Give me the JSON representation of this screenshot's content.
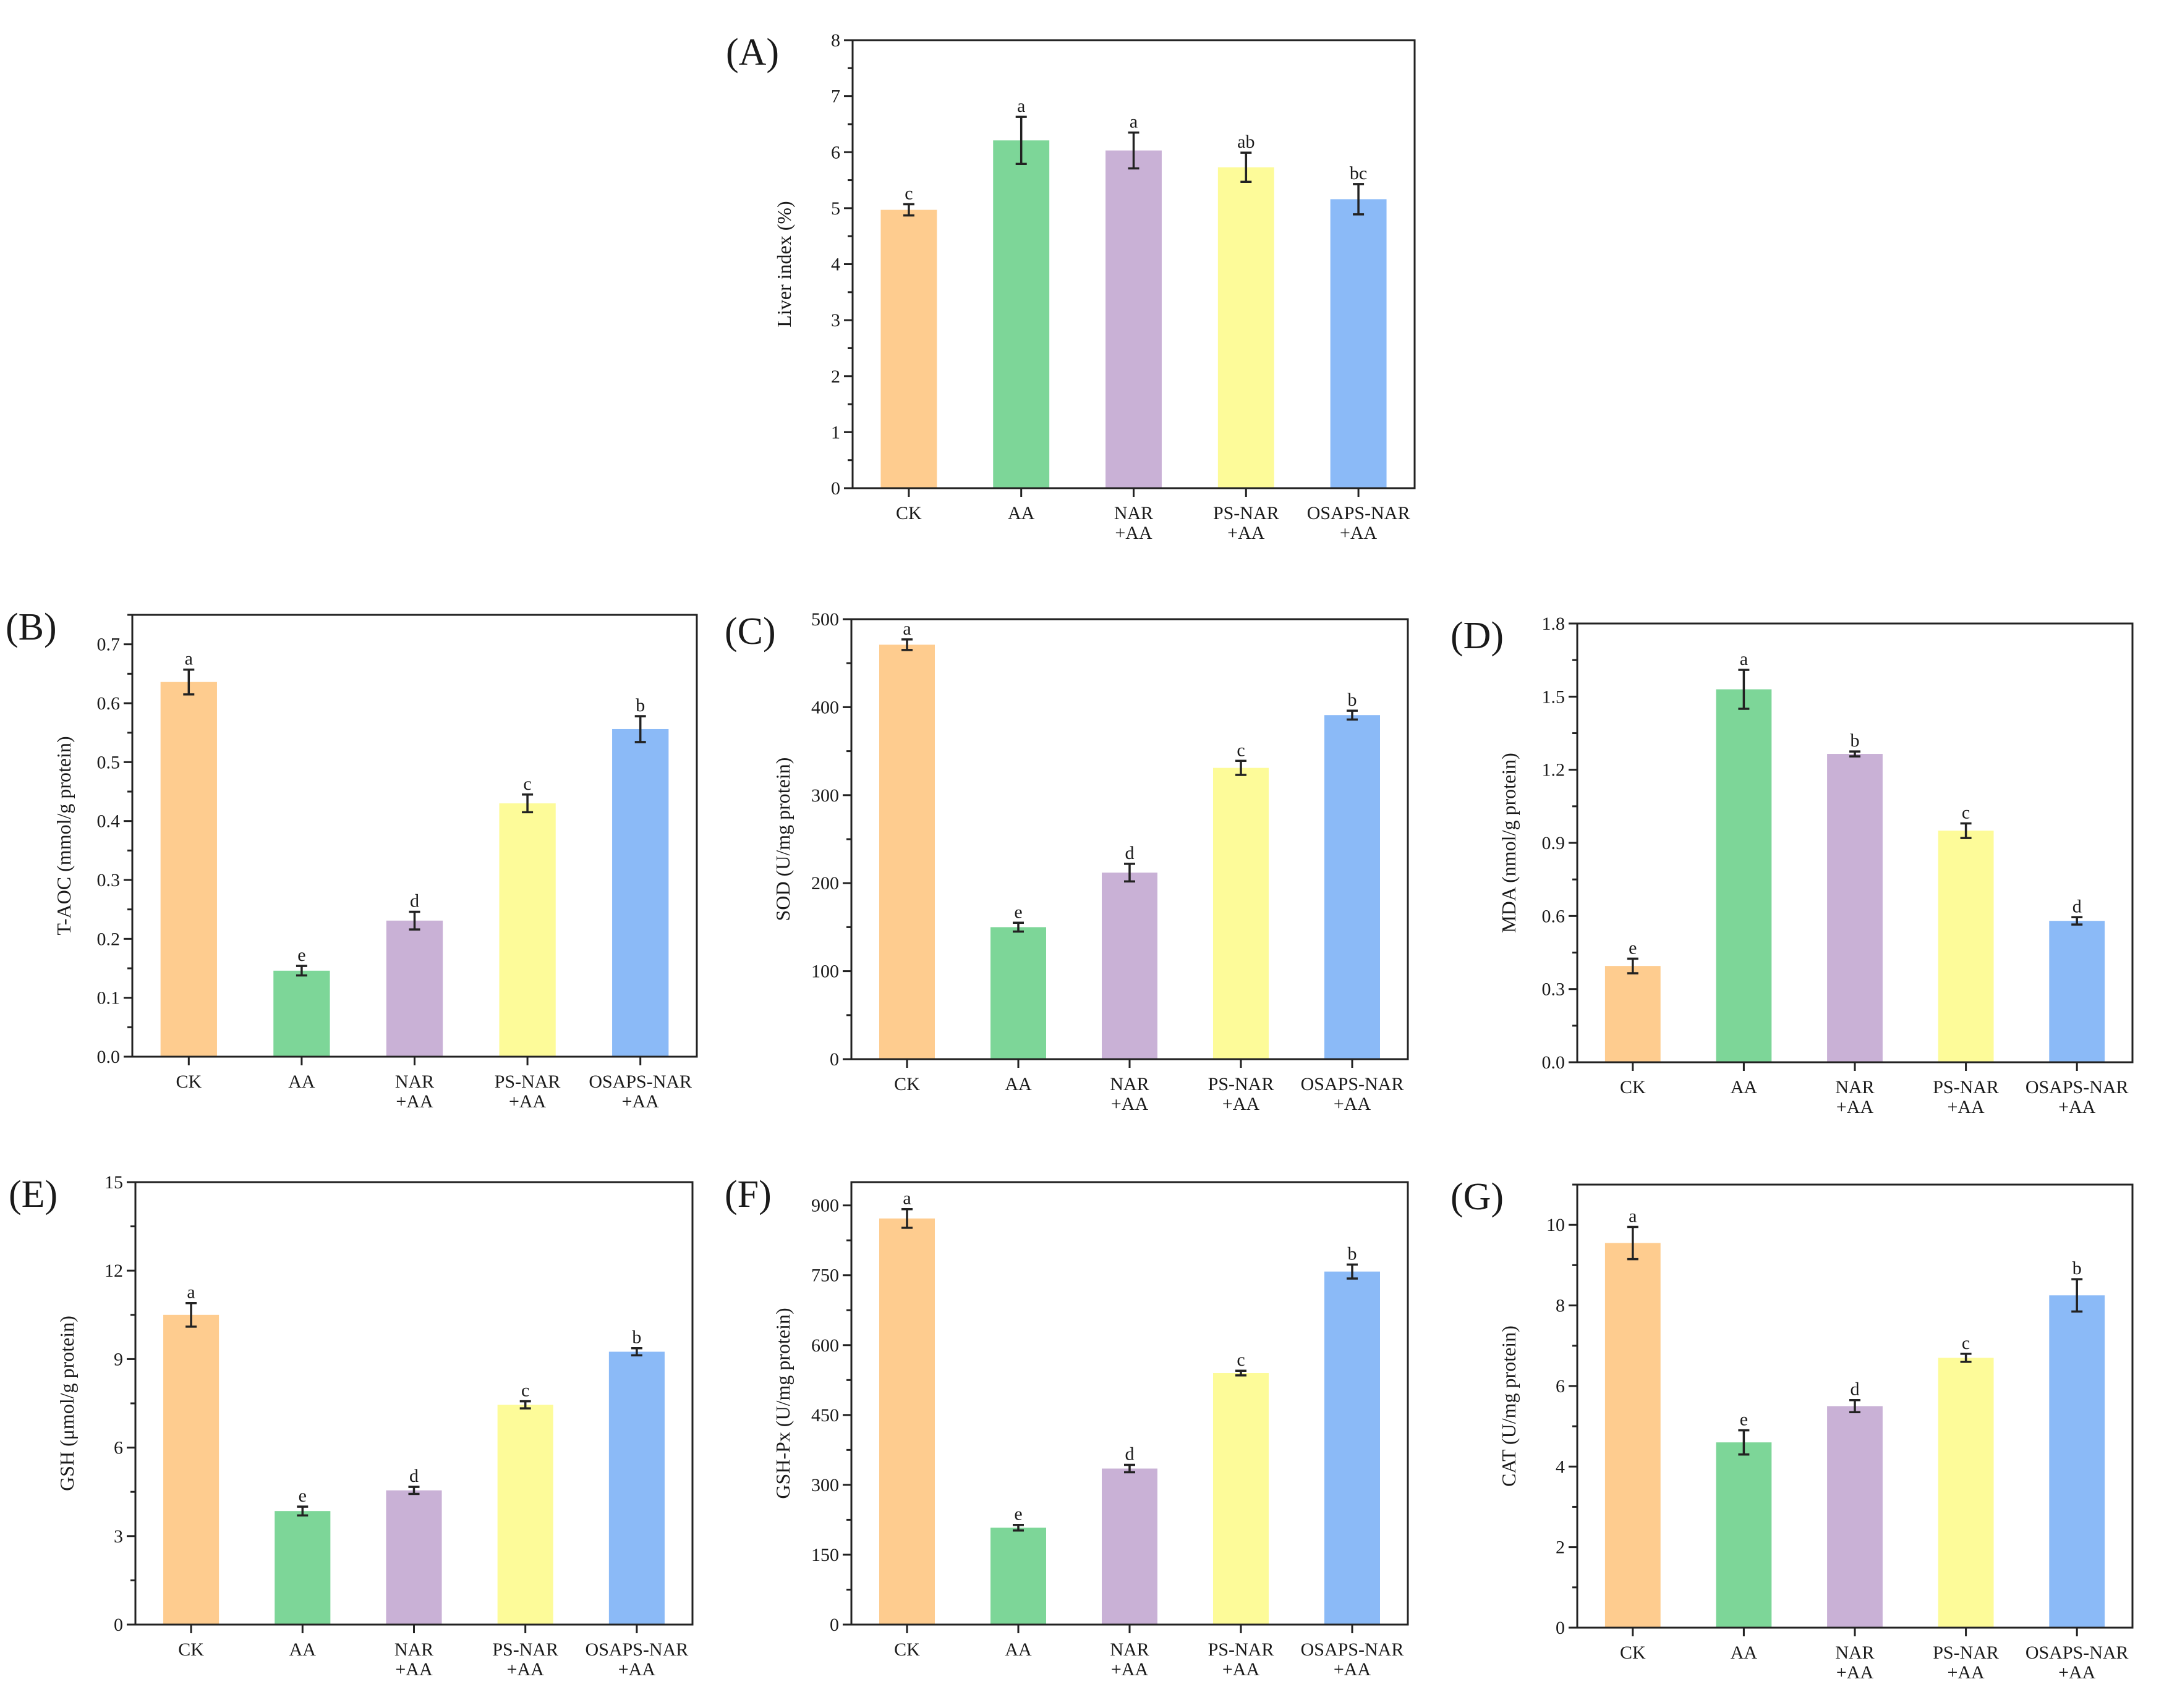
{
  "colors": [
    "#fecc8f",
    "#7dd698",
    "#c9b1d6",
    "#fdfb99",
    "#8bbaf7"
  ],
  "chart_data": [
    {
      "panel": "(A)",
      "type": "bar",
      "categories": [
        "CK",
        "AA",
        "NAR +AA",
        "PS-NAR +AA",
        "OSAPS-NAR +AA"
      ],
      "values": [
        4.97,
        6.21,
        6.03,
        5.73,
        5.16
      ],
      "errors": [
        0.1,
        0.42,
        0.32,
        0.26,
        0.27
      ],
      "letters": [
        "c",
        "a",
        "a",
        "ab",
        "bc"
      ],
      "ylabel": "Liver index (%)",
      "ylim": [
        0,
        8
      ],
      "yticks": [
        "0",
        "1",
        "2",
        "3",
        "4",
        "5",
        "6",
        "7",
        "8"
      ],
      "ytick_values": [
        0,
        1,
        2,
        3,
        4,
        5,
        6,
        7,
        8
      ]
    },
    {
      "panel": "(B)",
      "type": "bar",
      "categories": [
        "CK",
        "AA",
        "NAR +AA",
        "PS-NAR +AA",
        "OSAPS-NAR +AA"
      ],
      "values": [
        0.636,
        0.146,
        0.231,
        0.43,
        0.556
      ],
      "errors": [
        0.021,
        0.008,
        0.015,
        0.015,
        0.022
      ],
      "letters": [
        "a",
        "e",
        "d",
        "c",
        "b"
      ],
      "ylabel": "T-AOC (mmol/g protein)",
      "ylim": [
        0,
        0.75
      ],
      "yticks": [
        "0.0",
        "0.1",
        "0.2",
        "0.3",
        "0.4",
        "0.5",
        "0.6",
        "0.7"
      ],
      "ytick_values": [
        0,
        0.1,
        0.2,
        0.3,
        0.4,
        0.5,
        0.6,
        0.7
      ]
    },
    {
      "panel": "(C)",
      "type": "bar",
      "categories": [
        "CK",
        "AA",
        "NAR +AA",
        "PS-NAR +AA",
        "OSAPS-NAR +AA"
      ],
      "values": [
        471,
        150,
        212,
        331,
        391
      ],
      "errors": [
        6,
        5,
        10,
        8,
        5
      ],
      "letters": [
        "a",
        "e",
        "d",
        "c",
        "b"
      ],
      "ylabel": "SOD (U/mg protein)",
      "ylim": [
        0,
        500
      ],
      "yticks": [
        "0",
        "100",
        "200",
        "300",
        "400",
        "500"
      ],
      "ytick_values": [
        0,
        100,
        200,
        300,
        400,
        500
      ]
    },
    {
      "panel": "(D)",
      "type": "bar",
      "categories": [
        "CK",
        "AA",
        "NAR +AA",
        "PS-NAR +AA",
        "OSAPS-NAR +AA"
      ],
      "values": [
        0.395,
        1.53,
        1.265,
        0.95,
        0.58
      ],
      "errors": [
        0.03,
        0.08,
        0.01,
        0.03,
        0.015
      ],
      "letters": [
        "e",
        "a",
        "b",
        "c",
        "d"
      ],
      "ylabel": "MDA (nmol/g protein)",
      "ylim": [
        0,
        1.8
      ],
      "yticks": [
        "0.0",
        "0.3",
        "0.6",
        "0.9",
        "1.2",
        "1.5",
        "1.8"
      ],
      "ytick_values": [
        0,
        0.3,
        0.6,
        0.9,
        1.2,
        1.5,
        1.8
      ]
    },
    {
      "panel": "(E)",
      "type": "bar",
      "categories": [
        "CK",
        "AA",
        "NAR +AA",
        "PS-NAR +AA",
        "OSAPS-NAR +AA"
      ],
      "values": [
        10.5,
        3.85,
        4.55,
        7.45,
        9.25
      ],
      "errors": [
        0.4,
        0.15,
        0.12,
        0.12,
        0.12
      ],
      "letters": [
        "a",
        "e",
        "d",
        "c",
        "b"
      ],
      "ylabel": "GSH (μmol/g protein)",
      "ylim": [
        0,
        15
      ],
      "yticks": [
        "0",
        "3",
        "6",
        "9",
        "12",
        "15"
      ],
      "ytick_values": [
        0,
        3,
        6,
        9,
        12,
        15
      ]
    },
    {
      "panel": "(F)",
      "type": "bar",
      "categories": [
        "CK",
        "AA",
        "NAR +AA",
        "PS-NAR +AA",
        "OSAPS-NAR +AA"
      ],
      "values": [
        872,
        208,
        335,
        540,
        758
      ],
      "errors": [
        20,
        6,
        8,
        5,
        15
      ],
      "letters": [
        "a",
        "e",
        "d",
        "c",
        "b"
      ],
      "ylabel": "GSH-Px (U/mg protein)",
      "ylim": [
        0,
        950
      ],
      "yticks": [
        "0",
        "150",
        "300",
        "450",
        "600",
        "750",
        "900"
      ],
      "ytick_values": [
        0,
        150,
        300,
        450,
        600,
        750,
        900
      ]
    },
    {
      "panel": "(G)",
      "type": "bar",
      "categories": [
        "CK",
        "AA",
        "NAR +AA",
        "PS-NAR +AA",
        "OSAPS-NAR +AA"
      ],
      "values": [
        9.55,
        4.6,
        5.5,
        6.7,
        8.25
      ],
      "errors": [
        0.4,
        0.3,
        0.15,
        0.1,
        0.4
      ],
      "letters": [
        "a",
        "e",
        "d",
        "c",
        "b"
      ],
      "ylabel": "CAT (U/mg protein)",
      "ylim": [
        0,
        11
      ],
      "yticks": [
        "0",
        "2",
        "4",
        "6",
        "8",
        "10"
      ],
      "ytick_values": [
        0,
        2,
        4,
        6,
        8,
        10
      ]
    }
  ]
}
